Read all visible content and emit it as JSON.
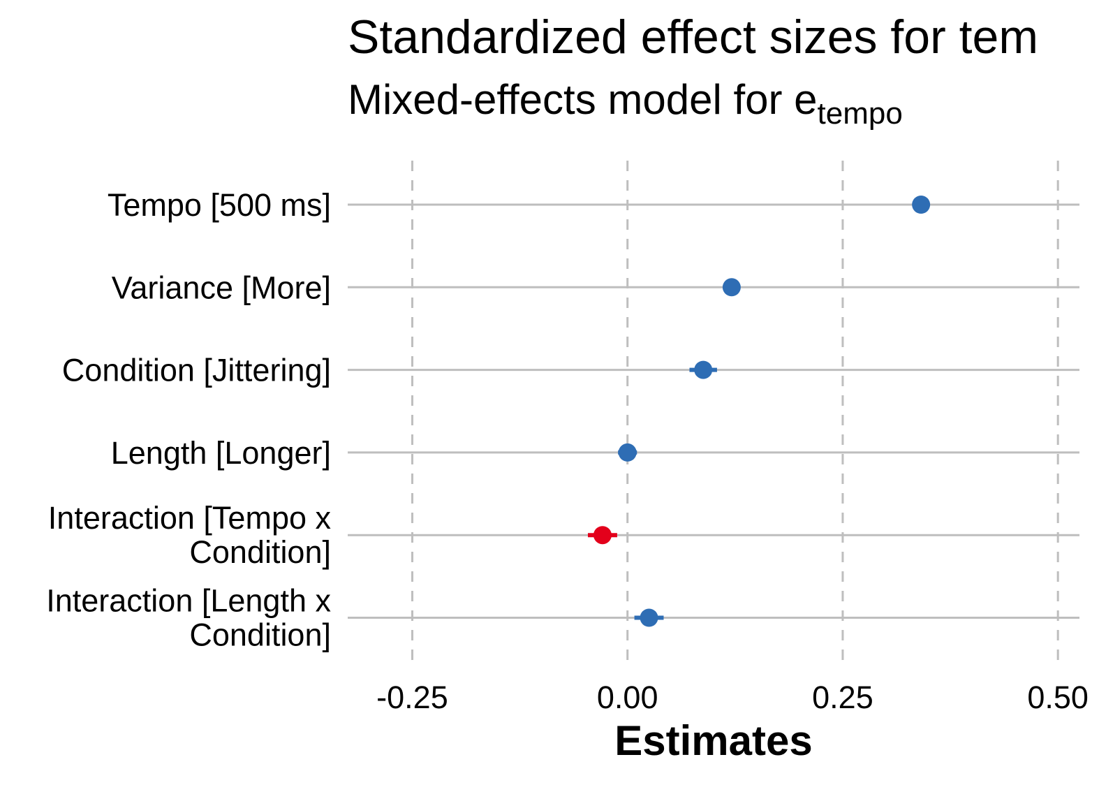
{
  "chart_data": {
    "type": "forest",
    "title": "Standardized effect sizes for tem",
    "subtitle": {
      "main": "Mixed-effects model for e",
      "subscript": "tempo"
    },
    "xlabel": "Estimates",
    "ylabel": "",
    "xlim": [
      -0.325,
      0.525
    ],
    "xticks": [
      "-0.25",
      "0.00",
      "0.25",
      "0.50"
    ],
    "xtick_values": [
      -0.25,
      0.0,
      0.25,
      0.5
    ],
    "grid": {
      "vertical": "dashed",
      "horizontal": "solid"
    },
    "legend": "none",
    "colors": {
      "positive": "#2e6db4",
      "negative": "#e3001b",
      "grid": "#bebebe"
    },
    "series": [
      {
        "terms": [
          {
            "label": [
              "Tempo [500 ms]"
            ],
            "estimate": 0.341,
            "ci": [
              0.332,
              0.35
            ],
            "sign": "positive"
          },
          {
            "label": [
              "Variance [More]"
            ],
            "estimate": 0.121,
            "ci": [
              0.113,
              0.129
            ],
            "sign": "positive"
          },
          {
            "label": [
              "Condition [Jittering]"
            ],
            "estimate": 0.088,
            "ci": [
              0.072,
              0.104
            ],
            "sign": "positive"
          },
          {
            "label": [
              "Length [Longer]"
            ],
            "estimate": 0.0,
            "ci": [
              -0.011,
              0.011
            ],
            "sign": "positive"
          },
          {
            "label": [
              "Interaction [Tempo x",
              "Condition]"
            ],
            "estimate": -0.029,
            "ci": [
              -0.046,
              -0.012
            ],
            "sign": "negative"
          },
          {
            "label": [
              "Interaction [Length x",
              "Condition]"
            ],
            "estimate": 0.025,
            "ci": [
              0.008,
              0.042
            ],
            "sign": "positive"
          }
        ]
      }
    ]
  }
}
